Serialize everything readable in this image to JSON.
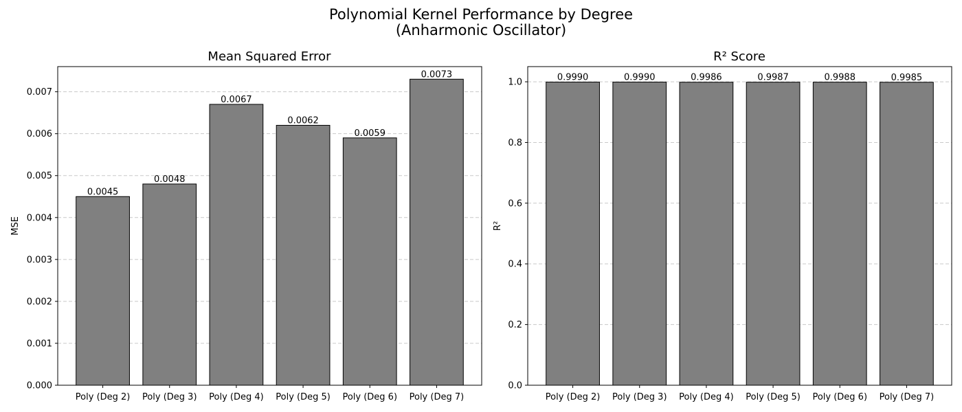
{
  "figure": {
    "title_line1": "Polynomial Kernel Performance by Degree",
    "title_line2": "(Anharmonic Oscillator)"
  },
  "chart_data": [
    {
      "type": "bar",
      "title": "Mean Squared Error",
      "xlabel": "",
      "ylabel": "MSE",
      "categories": [
        "Poly (Deg 2)",
        "Poly (Deg 3)",
        "Poly (Deg 4)",
        "Poly (Deg 5)",
        "Poly (Deg 6)",
        "Poly (Deg 7)"
      ],
      "values": [
        0.0045,
        0.0048,
        0.0067,
        0.0062,
        0.0059,
        0.0073
      ],
      "value_labels": [
        "0.0045",
        "0.0048",
        "0.0067",
        "0.0062",
        "0.0059",
        "0.0073"
      ],
      "ylim": [
        0,
        0.0076
      ],
      "yticks": [
        0,
        0.001,
        0.002,
        0.003,
        0.004,
        0.005,
        0.006,
        0.007
      ],
      "ytick_labels": [
        "0.000",
        "0.001",
        "0.002",
        "0.003",
        "0.004",
        "0.005",
        "0.006",
        "0.007"
      ],
      "grid": "y",
      "bar_color": "#808080",
      "edge_color": "#000000"
    },
    {
      "type": "bar",
      "title": "R² Score",
      "xlabel": "",
      "ylabel": "R²",
      "categories": [
        "Poly (Deg 2)",
        "Poly (Deg 3)",
        "Poly (Deg 4)",
        "Poly (Deg 5)",
        "Poly (Deg 6)",
        "Poly (Deg 7)"
      ],
      "values": [
        0.999,
        0.999,
        0.9986,
        0.9987,
        0.9988,
        0.9985
      ],
      "value_labels": [
        "0.9990",
        "0.9990",
        "0.9986",
        "0.9987",
        "0.9988",
        "0.9985"
      ],
      "ylim": [
        0,
        1.05
      ],
      "yticks": [
        0,
        0.2,
        0.4,
        0.6,
        0.8,
        1.0
      ],
      "ytick_labels": [
        "0.0",
        "0.2",
        "0.4",
        "0.6",
        "0.8",
        "1.0"
      ],
      "grid": "y",
      "bar_color": "#808080",
      "edge_color": "#000000"
    }
  ]
}
